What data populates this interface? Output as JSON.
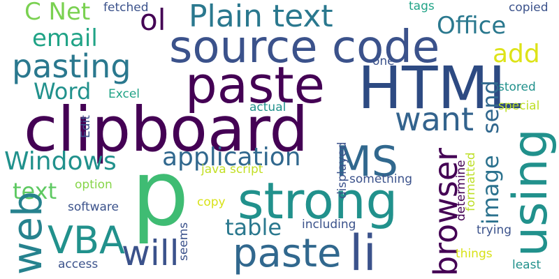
{
  "colors": {
    "background": "#ffffff",
    "palette": [
      "#440154",
      "#3b528b",
      "#21918c",
      "#5ec962",
      "#fde725"
    ]
  },
  "words": {
    "clipboard": "clipboard",
    "source_code": "source code",
    "html": "HTML",
    "p": "p",
    "strong": "strong",
    "paste": "paste",
    "paste_2": "paste",
    "li": "li",
    "plain_text": "Plain text",
    "pasting": "pasting",
    "using": "using",
    "web": "web",
    "vba": "VBA",
    "will": "will",
    "ms": "MS",
    "browser": "browser",
    "want": "want",
    "application": "application",
    "windows": "Windows",
    "image": "image",
    "send": "send",
    "email": "email",
    "c_net": "C Net",
    "ol": "ol",
    "office": "Office",
    "word": "Word",
    "add": "add",
    "text": "text",
    "table": "table",
    "fetched": "fetched",
    "tags": "tags",
    "copied": "copied",
    "one": "one",
    "stored": "stored",
    "excel": "Excel",
    "actual": "actual",
    "special": "special",
    "edit": "Edit",
    "displayed": "displayed",
    "java_script": "java script",
    "something": "something",
    "option": "option",
    "formatted": "formatted",
    "software": "software",
    "copy": "copy",
    "determine": "determine",
    "including": "including",
    "trying": "trying",
    "seems": "seems",
    "things": "things",
    "access": "access",
    "least": "least"
  }
}
